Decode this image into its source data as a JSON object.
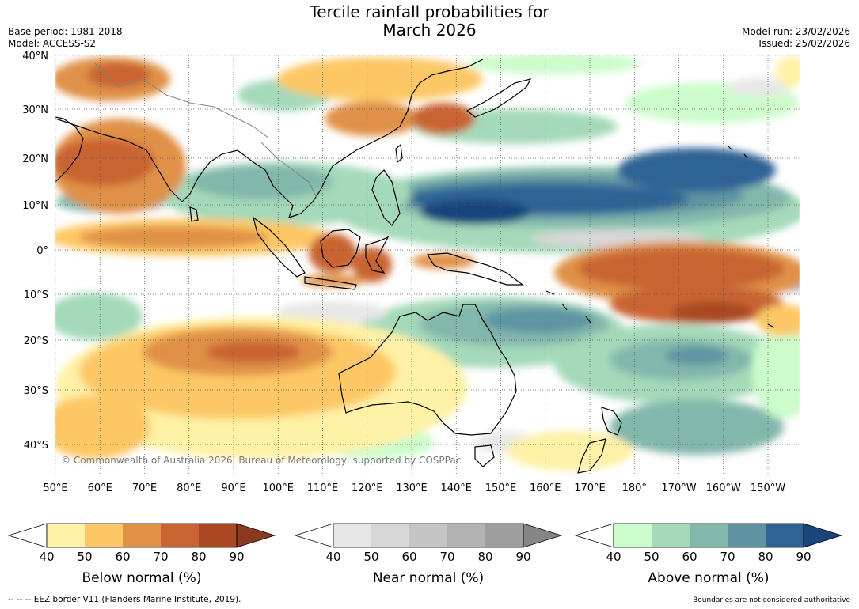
{
  "title": {
    "line1": "Tercile rainfall probabilities for",
    "line2": "March 2026"
  },
  "meta": {
    "base_period": "Base period: 1981-2018",
    "model": "Model: ACCESS-S2",
    "model_run": "Model run: 23/02/2026",
    "issued": "Issued: 25/02/2026"
  },
  "map": {
    "lat_labels": [
      "40°N",
      "30°N",
      "20°N",
      "10°N",
      "0°",
      "10°S",
      "20°S",
      "30°S",
      "40°S"
    ],
    "lon_labels": [
      "50°E",
      "60°E",
      "70°E",
      "80°E",
      "90°E",
      "100°E",
      "110°E",
      "120°E",
      "130°E",
      "140°E",
      "150°E",
      "160°E",
      "170°E",
      "180°",
      "170°W",
      "160°W",
      "150°W"
    ],
    "copyright": "© Commonwealth of Australia 2026, Bureau of Meteorology, supported by COSPPac"
  },
  "colorbars": [
    {
      "title": "Below normal (%)",
      "ticks": [
        "40",
        "50",
        "60",
        "70",
        "80",
        "90"
      ],
      "colors": [
        "#fff1a6",
        "#fdc765",
        "#e09146",
        "#c96332",
        "#a94823"
      ],
      "extend_color": "#8b3a1f"
    },
    {
      "title": "Near normal (%)",
      "ticks": [
        "40",
        "50",
        "60",
        "70",
        "80",
        "90"
      ],
      "colors": [
        "#e7e7e7",
        "#d7d7d7",
        "#c5c5c5",
        "#b2b2b2",
        "#9e9e9e"
      ],
      "extend_color": "#858585"
    },
    {
      "title": "Above normal (%)",
      "ticks": [
        "40",
        "50",
        "60",
        "70",
        "80",
        "90"
      ],
      "colors": [
        "#ccfccb",
        "#a4d9b9",
        "#82b7ac",
        "#5e94a2",
        "#2f6396"
      ],
      "extend_color": "#18457d"
    }
  ],
  "footnotes": {
    "eez": "--  --  -- EEZ border V11 (Flanders Marine Institute, 2019).",
    "boundaries": "Boundaries are not considered authoritative"
  },
  "colors": {
    "background": "#ffffff",
    "coastline": "#000000",
    "border": "#808080",
    "grid": "#555555"
  }
}
